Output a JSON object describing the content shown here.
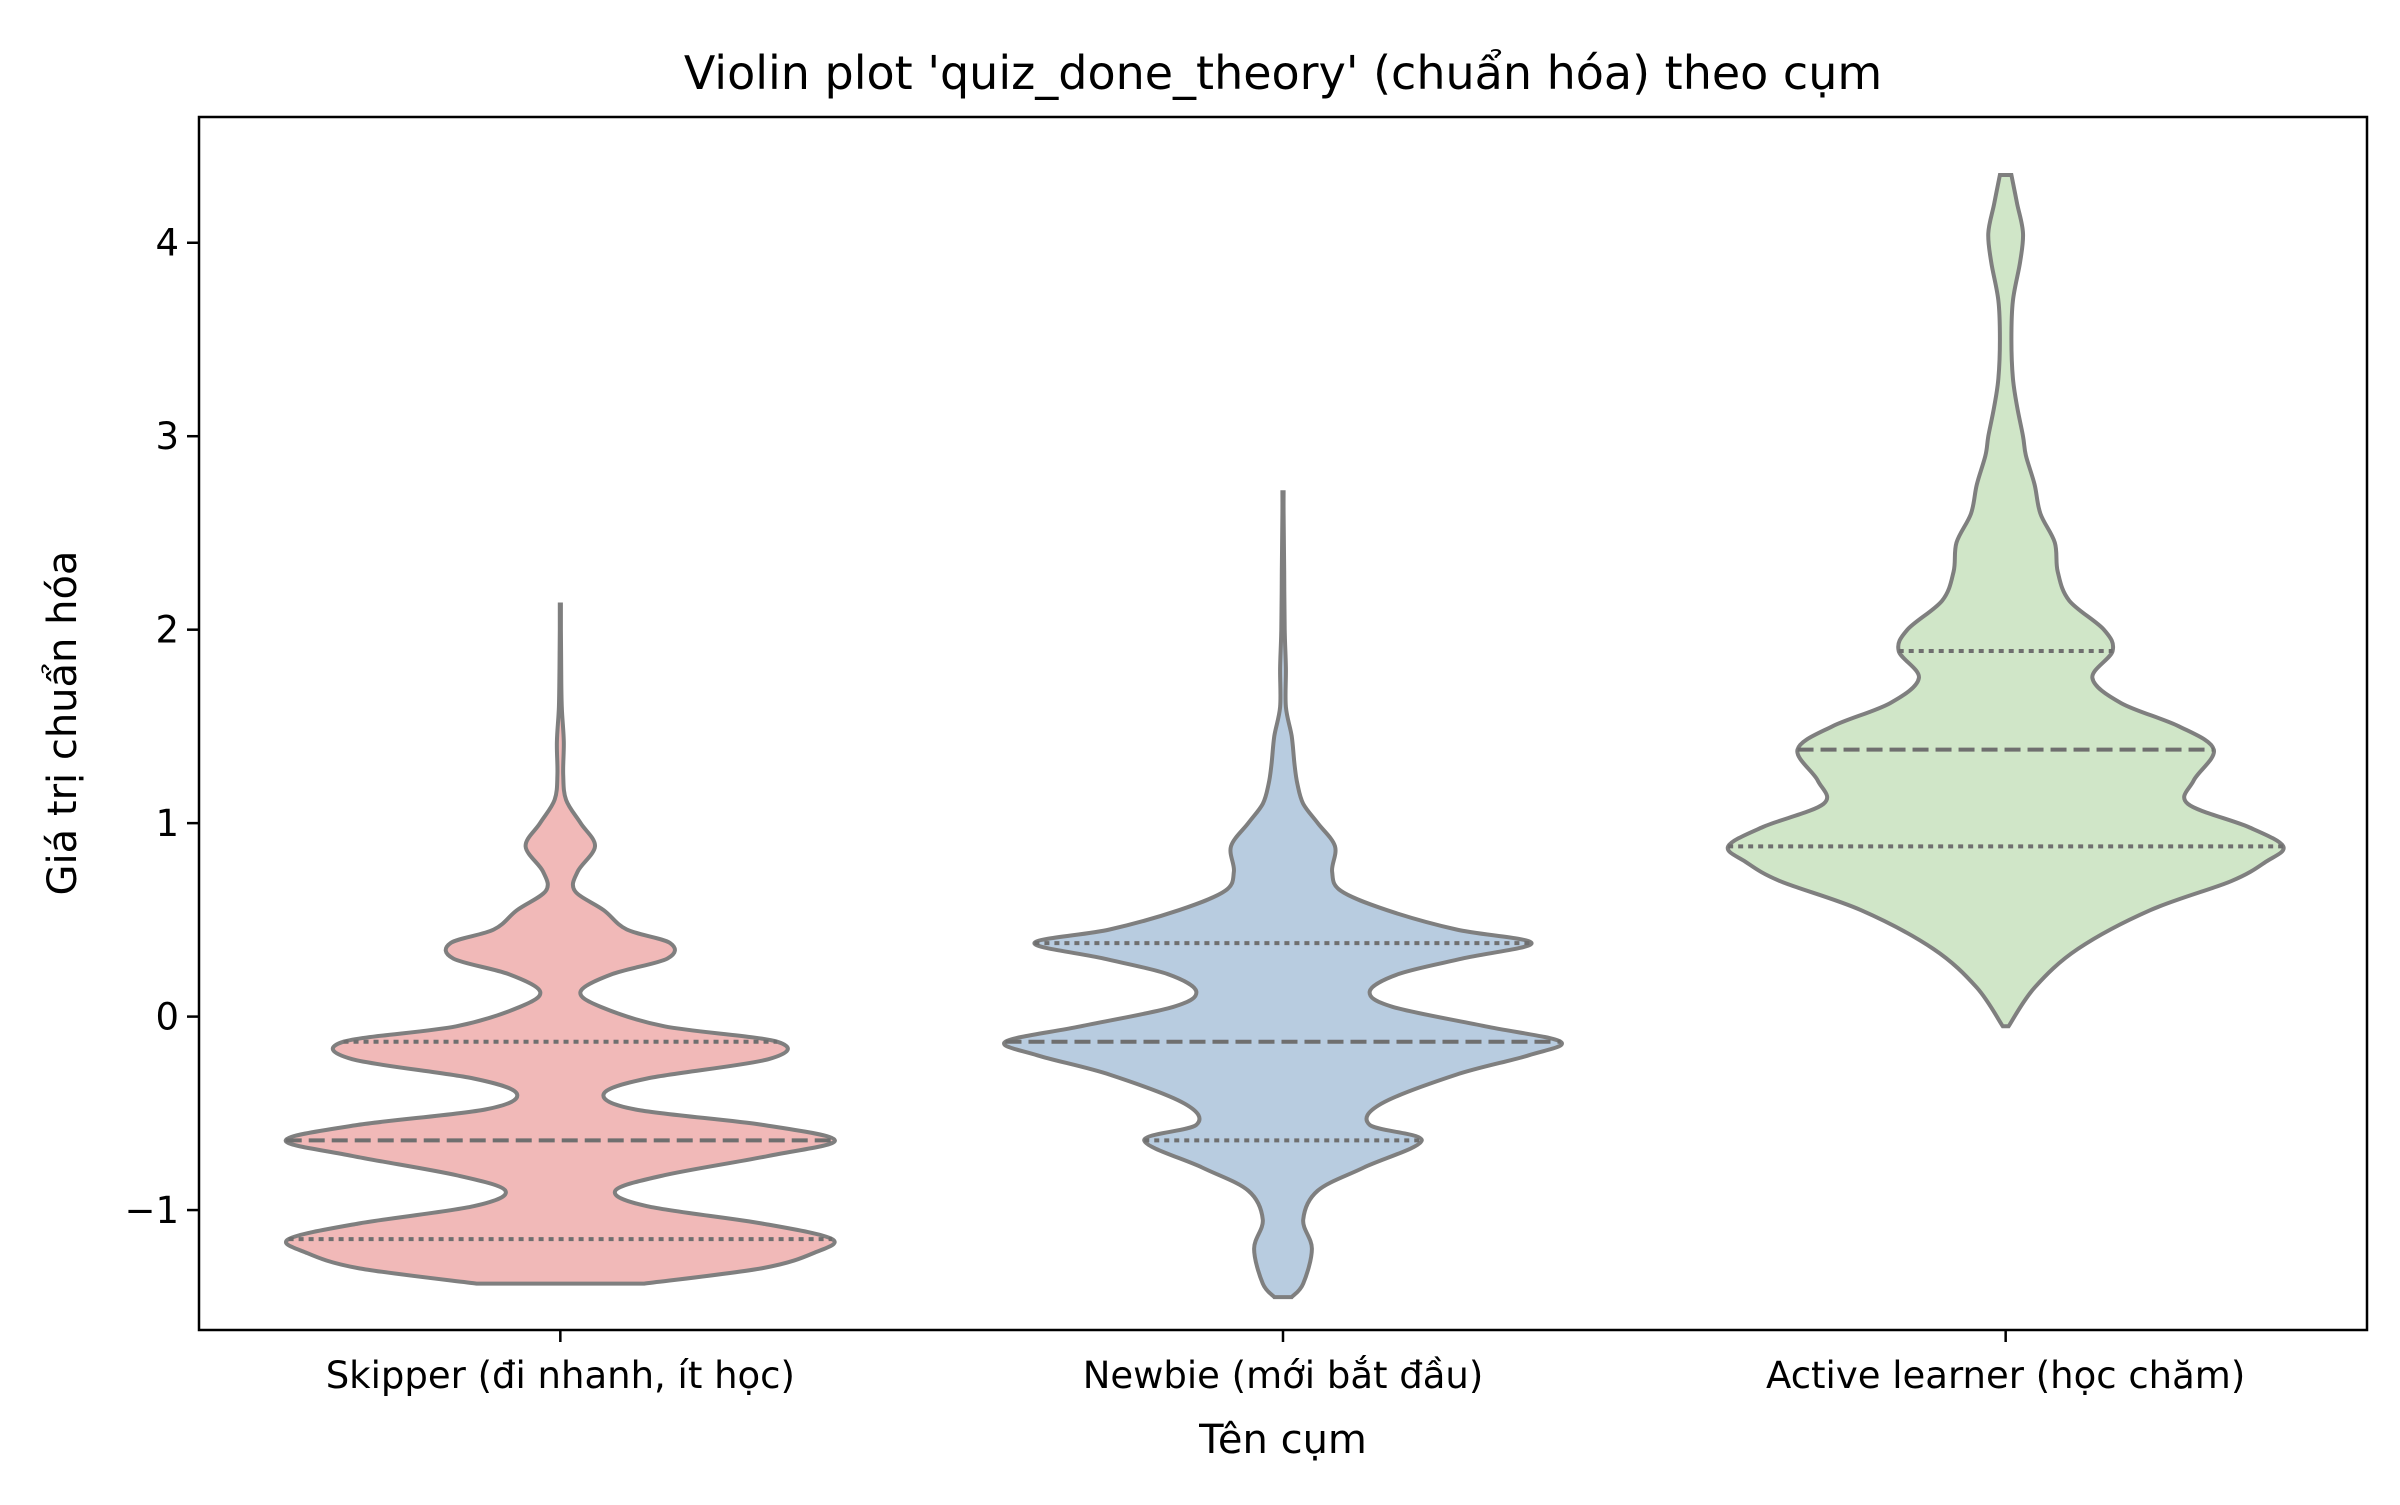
{
  "chart_data": {
    "type": "violin",
    "title": "Violin plot 'quiz_done_theory' (chuẩn hóa) theo cụm",
    "xlabel": "Tên cụm",
    "ylabel": "Giá trị chuẩn hóa",
    "ylim": [
      -1.62,
      4.65
    ],
    "yticks": [
      {
        "value": -1,
        "label": "−1"
      },
      {
        "value": 0,
        "label": "0"
      },
      {
        "value": 1,
        "label": "1"
      },
      {
        "value": 2,
        "label": "2"
      },
      {
        "value": 3,
        "label": "3"
      },
      {
        "value": 4,
        "label": "4"
      }
    ],
    "grid": false,
    "legend": "none",
    "categories": [
      "Skipper (đi nhanh, ít học)",
      "Newbie (mới bắt đầu)",
      "Active learner (học chăm)"
    ],
    "series": [
      {
        "color": "#f1b9b8",
        "min": -1.38,
        "max": 2.13,
        "q1": -1.15,
        "median": -0.64,
        "q3": -0.13,
        "density": [
          [
            -1.38,
            0.29
          ],
          [
            -1.3,
            0.7
          ],
          [
            -1.22,
            0.88
          ],
          [
            -1.15,
            0.94
          ],
          [
            -1.07,
            0.7
          ],
          [
            -0.98,
            0.3
          ],
          [
            -0.9,
            0.19
          ],
          [
            -0.82,
            0.36
          ],
          [
            -0.72,
            0.72
          ],
          [
            -0.64,
            0.95
          ],
          [
            -0.56,
            0.7
          ],
          [
            -0.48,
            0.26
          ],
          [
            -0.4,
            0.15
          ],
          [
            -0.32,
            0.3
          ],
          [
            -0.22,
            0.72
          ],
          [
            -0.13,
            0.75
          ],
          [
            -0.05,
            0.36
          ],
          [
            0.05,
            0.14
          ],
          [
            0.13,
            0.07
          ],
          [
            0.22,
            0.18
          ],
          [
            0.3,
            0.37
          ],
          [
            0.38,
            0.38
          ],
          [
            0.45,
            0.23
          ],
          [
            0.55,
            0.15
          ],
          [
            0.65,
            0.05
          ],
          [
            0.75,
            0.06
          ],
          [
            0.88,
            0.12
          ],
          [
            1.0,
            0.07
          ],
          [
            1.12,
            0.02
          ],
          [
            1.25,
            0.01
          ],
          [
            1.42,
            0.012
          ],
          [
            1.6,
            0.005
          ],
          [
            1.8,
            0.003
          ],
          [
            2.0,
            0.002
          ],
          [
            2.13,
            0.002
          ]
        ]
      },
      {
        "color": "#b8cce0",
        "min": -1.45,
        "max": 2.71,
        "q1": -0.64,
        "median": -0.13,
        "q3": 0.38,
        "density": [
          [
            -1.45,
            0.03
          ],
          [
            -1.38,
            0.07
          ],
          [
            -1.2,
            0.1
          ],
          [
            -1.05,
            0.07
          ],
          [
            -0.9,
            0.12
          ],
          [
            -0.78,
            0.28
          ],
          [
            -0.64,
            0.48
          ],
          [
            -0.56,
            0.3
          ],
          [
            -0.45,
            0.34
          ],
          [
            -0.3,
            0.6
          ],
          [
            -0.2,
            0.85
          ],
          [
            -0.13,
            0.96
          ],
          [
            -0.05,
            0.7
          ],
          [
            0.05,
            0.38
          ],
          [
            0.13,
            0.3
          ],
          [
            0.22,
            0.4
          ],
          [
            0.3,
            0.62
          ],
          [
            0.38,
            0.86
          ],
          [
            0.45,
            0.6
          ],
          [
            0.55,
            0.36
          ],
          [
            0.65,
            0.2
          ],
          [
            0.75,
            0.17
          ],
          [
            0.88,
            0.18
          ],
          [
            1.0,
            0.12
          ],
          [
            1.1,
            0.07
          ],
          [
            1.2,
            0.05
          ],
          [
            1.3,
            0.04
          ],
          [
            1.45,
            0.03
          ],
          [
            1.6,
            0.01
          ],
          [
            1.8,
            0.01
          ],
          [
            2.0,
            0.006
          ],
          [
            2.3,
            0.004
          ],
          [
            2.6,
            0.002
          ],
          [
            2.71,
            0.002
          ]
        ]
      },
      {
        "color": "#d0e6c8",
        "min": -0.05,
        "max": 4.35,
        "q1": 0.88,
        "median": 1.38,
        "q3": 1.89,
        "density": [
          [
            -0.05,
            0.01
          ],
          [
            0.15,
            0.1
          ],
          [
            0.35,
            0.25
          ],
          [
            0.55,
            0.5
          ],
          [
            0.7,
            0.78
          ],
          [
            0.8,
            0.9
          ],
          [
            0.88,
            0.96
          ],
          [
            0.98,
            0.84
          ],
          [
            1.1,
            0.63
          ],
          [
            1.22,
            0.65
          ],
          [
            1.38,
            0.72
          ],
          [
            1.5,
            0.6
          ],
          [
            1.62,
            0.4
          ],
          [
            1.75,
            0.3
          ],
          [
            1.89,
            0.37
          ],
          [
            2.0,
            0.34
          ],
          [
            2.15,
            0.22
          ],
          [
            2.3,
            0.18
          ],
          [
            2.45,
            0.17
          ],
          [
            2.6,
            0.12
          ],
          [
            2.75,
            0.1
          ],
          [
            2.9,
            0.07
          ],
          [
            3.0,
            0.06
          ],
          [
            3.15,
            0.04
          ],
          [
            3.3,
            0.025
          ],
          [
            3.5,
            0.02
          ],
          [
            3.7,
            0.025
          ],
          [
            3.9,
            0.05
          ],
          [
            4.05,
            0.06
          ],
          [
            4.2,
            0.04
          ],
          [
            4.35,
            0.02
          ]
        ]
      }
    ]
  }
}
